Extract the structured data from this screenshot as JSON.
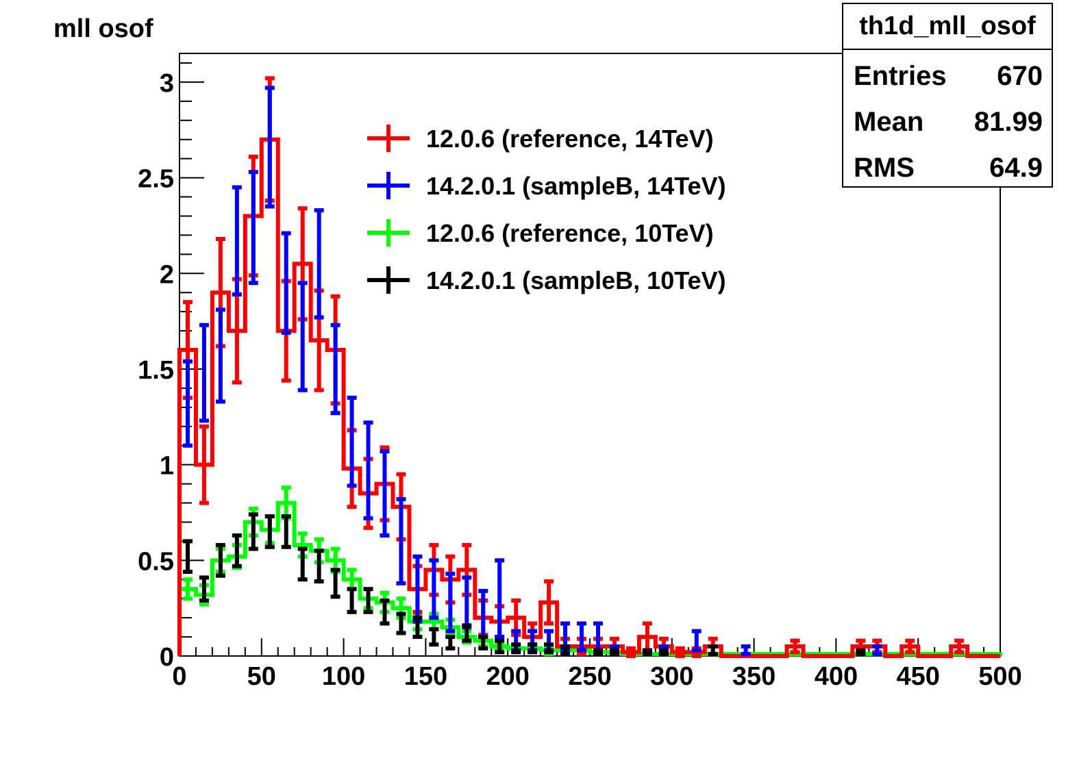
{
  "chart_data": {
    "type": "histogram",
    "title": "mll osof",
    "xlim": [
      0,
      500
    ],
    "ylim": [
      0,
      3.15
    ],
    "bin_width": 10,
    "x_ticks": [
      0,
      50,
      100,
      150,
      200,
      250,
      300,
      350,
      400,
      450,
      500
    ],
    "y_ticks": [
      0,
      0.5,
      1,
      1.5,
      2,
      2.5,
      3
    ],
    "x_tick_labels": [
      "0",
      "50",
      "100",
      "150",
      "200",
      "250",
      "300",
      "350",
      "400",
      "450",
      "500"
    ],
    "y_tick_labels": [
      "0",
      "0.5",
      "1",
      "1.5",
      "2",
      "2.5",
      "3"
    ],
    "grid": false,
    "legend_position": "upper-middle",
    "stats_box": {
      "title": "th1d_mll_osof",
      "rows": [
        {
          "label": "Entries",
          "value": "670"
        },
        {
          "label": "Mean",
          "value": "81.99"
        },
        {
          "label": "RMS",
          "value": "64.9"
        }
      ]
    },
    "series": [
      {
        "name": "12.0.6 (reference, 14TeV)",
        "color": "#ff0000",
        "style": "histogram-with-errors",
        "x": [
          5,
          15,
          25,
          35,
          45,
          55,
          65,
          75,
          85,
          95,
          105,
          115,
          125,
          135,
          145,
          155,
          165,
          175,
          185,
          195,
          205,
          215,
          225,
          235,
          245,
          255,
          265,
          275,
          285,
          295,
          305,
          315,
          325,
          335,
          345,
          355,
          365,
          375,
          385,
          395,
          405,
          415,
          425,
          435,
          445,
          455,
          465,
          475,
          485,
          495
        ],
        "values": [
          1.6,
          1.0,
          1.9,
          1.7,
          2.3,
          2.7,
          1.7,
          2.05,
          1.65,
          1.6,
          0.98,
          0.85,
          0.9,
          0.78,
          0.35,
          0.45,
          0.4,
          0.45,
          0.2,
          0.18,
          0.2,
          0.1,
          0.28,
          0.05,
          0.05,
          0.05,
          0.05,
          0.02,
          0.1,
          0.05,
          0.02,
          0.02,
          0.05,
          0.0,
          0.0,
          0.0,
          0.0,
          0.05,
          0.0,
          0.0,
          0.0,
          0.05,
          0.05,
          0.0,
          0.05,
          0.0,
          0.0,
          0.05,
          0.0,
          0.0
        ],
        "errors": [
          0.25,
          0.2,
          0.28,
          0.27,
          0.31,
          0.32,
          0.26,
          0.29,
          0.26,
          0.28,
          0.2,
          0.18,
          0.19,
          0.17,
          0.12,
          0.13,
          0.12,
          0.13,
          0.09,
          0.08,
          0.09,
          0.07,
          0.11,
          0.04,
          0.04,
          0.04,
          0.04,
          0.02,
          0.07,
          0.04,
          0.02,
          0.02,
          0.04,
          0,
          0,
          0,
          0,
          0.03,
          0,
          0,
          0,
          0.03,
          0.03,
          0,
          0.03,
          0,
          0,
          0.03,
          0,
          0
        ]
      },
      {
        "name": "14.2.0.1 (sampleB, 14TeV)",
        "color": "#0000ff",
        "style": "points-with-errors",
        "x": [
          5,
          15,
          25,
          35,
          45,
          55,
          65,
          75,
          85,
          95,
          105,
          115,
          125,
          135,
          145,
          155,
          165,
          175,
          185,
          195,
          205,
          215,
          225,
          235,
          245,
          255,
          265,
          295,
          315,
          345,
          425
        ],
        "values": [
          1.32,
          1.48,
          1.57,
          2.17,
          2.24,
          2.66,
          1.95,
          1.67,
          2.05,
          1.5,
          1.12,
          0.97,
          0.85,
          0.6,
          0.35,
          0.35,
          0.28,
          0.28,
          0.22,
          0.3,
          0.08,
          0.08,
          0.08,
          0.1,
          0.1,
          0.1,
          0.03,
          0.03,
          0.08,
          0.03,
          0.03
        ],
        "errors": [
          0.22,
          0.25,
          0.24,
          0.28,
          0.29,
          0.31,
          0.26,
          0.28,
          0.28,
          0.23,
          0.23,
          0.25,
          0.22,
          0.22,
          0.17,
          0.15,
          0.15,
          0.13,
          0.12,
          0.2,
          0.05,
          0.05,
          0.05,
          0.07,
          0.07,
          0.07,
          0.02,
          0.02,
          0.05,
          0.02,
          0.02
        ]
      },
      {
        "name": "12.0.6 (reference, 10TeV)",
        "color": "#00ff00",
        "style": "histogram-with-errors",
        "x": [
          5,
          15,
          25,
          35,
          45,
          55,
          65,
          75,
          85,
          95,
          105,
          115,
          125,
          135,
          145,
          155,
          165,
          175,
          185,
          195,
          205,
          215,
          225,
          235,
          245,
          255,
          265,
          275,
          285,
          295,
          305,
          315,
          325,
          335,
          345,
          355,
          365,
          375,
          385,
          395,
          405,
          415,
          425,
          435,
          445,
          455,
          465,
          475,
          485,
          495
        ],
        "values": [
          0.35,
          0.32,
          0.5,
          0.52,
          0.7,
          0.66,
          0.8,
          0.58,
          0.55,
          0.5,
          0.4,
          0.3,
          0.28,
          0.25,
          0.18,
          0.18,
          0.15,
          0.1,
          0.08,
          0.05,
          0.04,
          0.04,
          0.03,
          0.03,
          0.03,
          0.02,
          0.02,
          0.01,
          0.01,
          0.01,
          0.01,
          0.01,
          0.01,
          0.01,
          0.01,
          0.01,
          0.01,
          0.01,
          0.01,
          0.01,
          0.01,
          0.01,
          0.01,
          0.01,
          0.01,
          0.01,
          0.01,
          0.01,
          0.01,
          0.01
        ],
        "errors": [
          0.05,
          0.05,
          0.06,
          0.06,
          0.07,
          0.07,
          0.08,
          0.06,
          0.06,
          0.06,
          0.05,
          0.05,
          0.05,
          0.05,
          0.04,
          0.04,
          0.04,
          0.03,
          0.03,
          0.02,
          0.02,
          0.02,
          0.02,
          0.02,
          0.02,
          0.01,
          0.01,
          0,
          0,
          0,
          0,
          0,
          0,
          0,
          0,
          0,
          0,
          0,
          0,
          0,
          0,
          0,
          0,
          0,
          0,
          0,
          0,
          0,
          0,
          0
        ]
      },
      {
        "name": "14.2.0.1 (sampleB, 10TeV)",
        "color": "#000000",
        "style": "points-with-errors",
        "x": [
          5,
          15,
          25,
          35,
          45,
          55,
          65,
          75,
          85,
          95,
          105,
          115,
          125,
          135,
          145,
          155,
          165,
          175,
          185,
          195,
          205,
          215,
          225,
          235,
          255,
          265,
          285,
          295,
          325,
          415
        ],
        "values": [
          0.52,
          0.35,
          0.5,
          0.55,
          0.65,
          0.65,
          0.65,
          0.48,
          0.47,
          0.38,
          0.29,
          0.29,
          0.23,
          0.17,
          0.15,
          0.1,
          0.07,
          0.12,
          0.07,
          0.05,
          0.04,
          0.04,
          0.04,
          0.03,
          0.02,
          0.02,
          0.02,
          0.02,
          0.03,
          0.02
        ],
        "errors": [
          0.08,
          0.06,
          0.08,
          0.08,
          0.09,
          0.08,
          0.08,
          0.08,
          0.08,
          0.07,
          0.06,
          0.06,
          0.06,
          0.05,
          0.05,
          0.04,
          0.03,
          0.04,
          0.03,
          0.03,
          0.02,
          0.02,
          0.02,
          0.02,
          0.01,
          0.01,
          0.01,
          0.01,
          0.02,
          0.01
        ]
      }
    ]
  }
}
